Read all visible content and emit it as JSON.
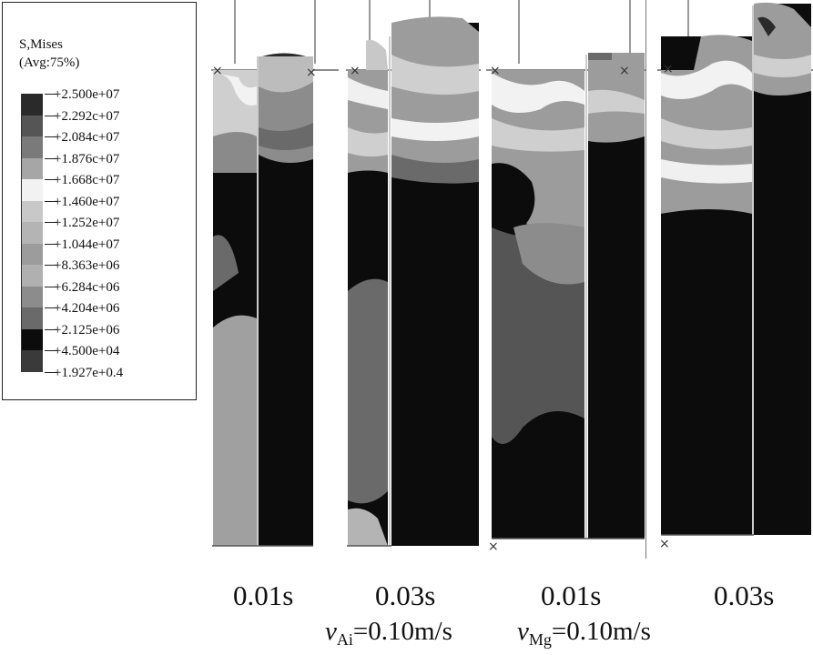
{
  "legend": {
    "title_line1": "S,Mises",
    "title_line2": "(Avg:75%)",
    "levels": [
      {
        "label": "+2.500e+07",
        "color": "#2a2a2a"
      },
      {
        "label": "+2.292c+07",
        "color": "#555555"
      },
      {
        "label": "+2.084c+07",
        "color": "#7a7a7a"
      },
      {
        "label": "+1.876c+07",
        "color": "#a6a6a6"
      },
      {
        "label": "+1.668c+07",
        "color": "#f2f2f2"
      },
      {
        "label": "+1.460e+07",
        "color": "#c8c8c8"
      },
      {
        "label": "+1.252e+07",
        "color": "#b4b4b4"
      },
      {
        "label": "+1.044e+07",
        "color": "#9c9c9c"
      },
      {
        "label": "+8.363e+06",
        "color": "#b0b0b0"
      },
      {
        "label": "+6.284c+06",
        "color": "#8c8c8c"
      },
      {
        "label": "+4.204e+06",
        "color": "#6a6a6a"
      },
      {
        "label": "+2.125e+06",
        "color": "#0c0c0c"
      },
      {
        "label": "+4.500e+04",
        "color": "#3a3a3a"
      },
      {
        "label": "+1.927e+0.4",
        "color": ""
      }
    ]
  },
  "captions": {
    "panel1": "0.01s",
    "panel2": "0.03s",
    "panel3": "0.01s",
    "panel4": "0.03s"
  },
  "velocity_al": {
    "symbol": "v",
    "subscript": "Ai",
    "value": "=0.10m/s"
  },
  "velocity_mg": {
    "symbol": "v",
    "subscript": "Mg",
    "value": "=0.10m/s"
  }
}
